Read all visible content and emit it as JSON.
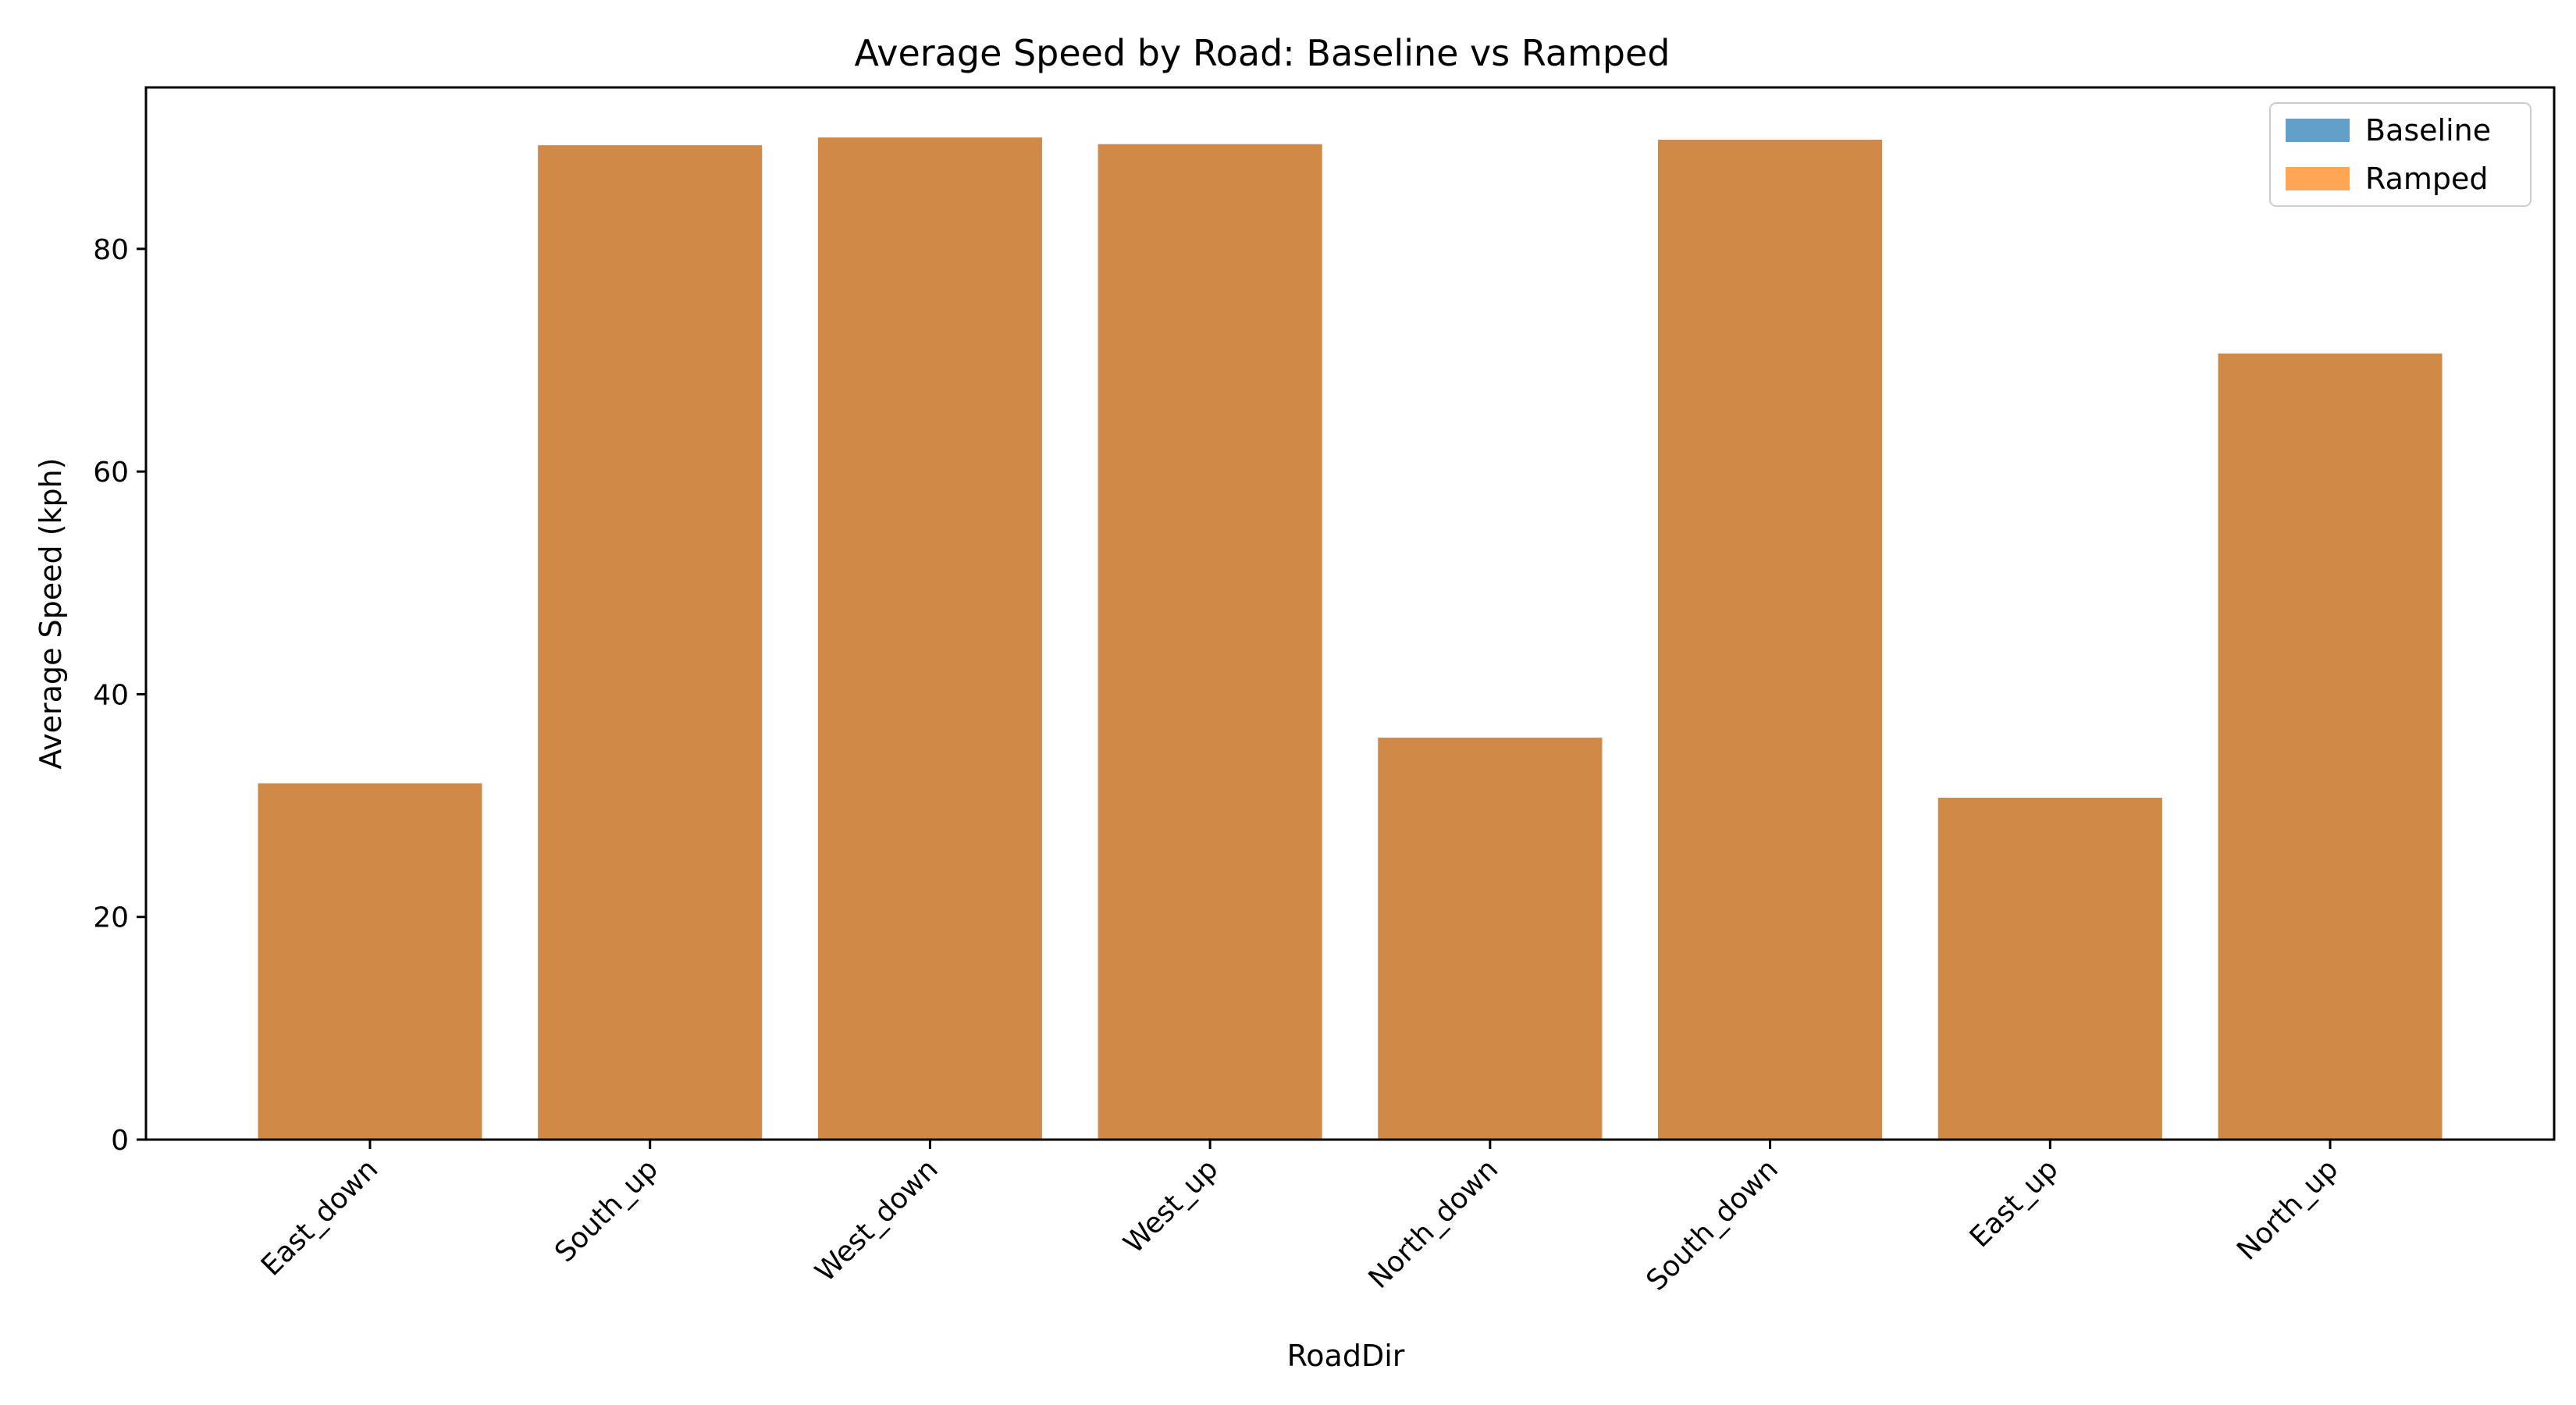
{
  "chart_data": {
    "type": "bar",
    "title": "Average Speed by Road: Baseline vs Ramped",
    "xlabel": "RoadDir",
    "ylabel": "Average Speed (kph)",
    "categories": [
      "East_down",
      "South_up",
      "West_down",
      "West_up",
      "North_down",
      "South_down",
      "East_up",
      "North_up"
    ],
    "series": [
      {
        "name": "Baseline",
        "color": "#1f77b4",
        "opacity": 0.7,
        "values": [
          32.0,
          89.3,
          90.0,
          89.4,
          36.1,
          89.8,
          30.7,
          70.6
        ]
      },
      {
        "name": "Ramped",
        "color": "#ff7f0e",
        "opacity": 0.7,
        "values": [
          32.0,
          89.3,
          90.0,
          89.4,
          36.1,
          89.8,
          30.7,
          70.6
        ]
      }
    ],
    "ylim": [
      0,
      94.5
    ],
    "yticks": [
      0,
      20,
      40,
      60,
      80
    ],
    "grid": false,
    "legend_position": "top-right"
  }
}
